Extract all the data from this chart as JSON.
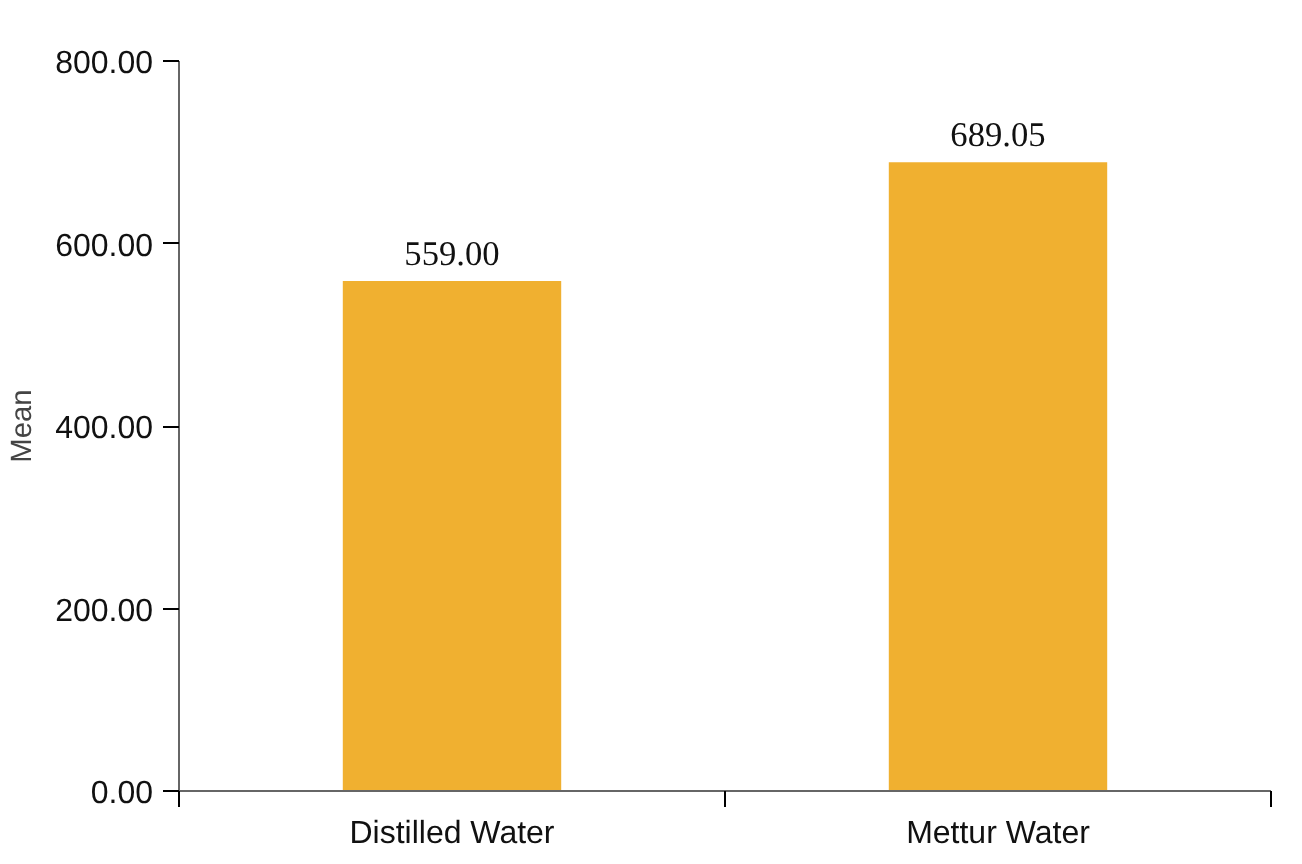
{
  "chart_data": {
    "type": "bar",
    "ylabel": "Mean",
    "categories": [
      "Distilled Water",
      "Mettur Water"
    ],
    "values": [
      559.0,
      689.05
    ],
    "value_labels": [
      "559.00",
      "689.05"
    ],
    "color": "#f0b030",
    "ylim": [
      0,
      800
    ],
    "yticks": [
      {
        "value": 0,
        "label": "0.00"
      },
      {
        "value": 200,
        "label": "200.00"
      },
      {
        "value": 400,
        "label": "400.00"
      },
      {
        "value": 600,
        "label": "600.00"
      },
      {
        "value": 800,
        "label": "800.00"
      }
    ],
    "grid": false
  }
}
